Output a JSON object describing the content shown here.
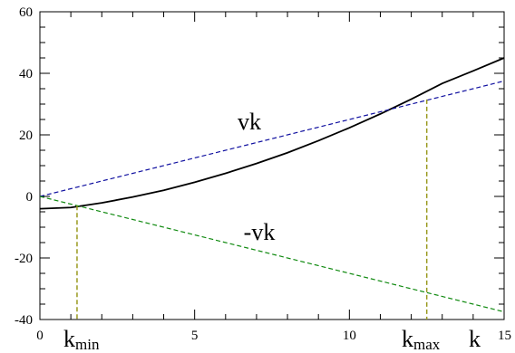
{
  "chart_data": {
    "type": "line",
    "title": "",
    "xlabel": "k",
    "ylabel": "",
    "xlim": [
      0,
      15
    ],
    "ylim": [
      -40,
      60
    ],
    "x_ticks": [
      0,
      5,
      10,
      15
    ],
    "y_ticks": [
      -40,
      -20,
      0,
      20,
      40,
      60
    ],
    "grid": false,
    "series": [
      {
        "color": "#000000",
        "dash": "solid",
        "x": [
          0,
          1,
          2,
          3,
          4,
          5,
          6,
          7,
          8,
          9,
          10,
          11,
          12,
          13,
          14,
          15
        ],
        "values": [
          -4,
          -3.6,
          -2.1,
          -0.2,
          2,
          4.6,
          7.5,
          10.7,
          14.2,
          18.1,
          22.3,
          26.8,
          31.6,
          36.7,
          40.8,
          45
        ]
      },
      {
        "label": "vk",
        "color": "#1010a0",
        "dash": "dashed",
        "x": [
          0,
          15
        ],
        "values": [
          0,
          37.5
        ]
      },
      {
        "label": "-vk",
        "color": "#108a10",
        "dash": "dashed",
        "x": [
          0,
          15
        ],
        "values": [
          0,
          -37.5
        ]
      }
    ],
    "vertical_markers": [
      {
        "label": "k",
        "subscript": "min",
        "x": 1.2,
        "y_top": -3,
        "color": "#9a9a20"
      },
      {
        "label": "k",
        "subscript": "max",
        "x": 12.5,
        "y_top": 31.5,
        "color": "#9a9a20"
      }
    ]
  }
}
